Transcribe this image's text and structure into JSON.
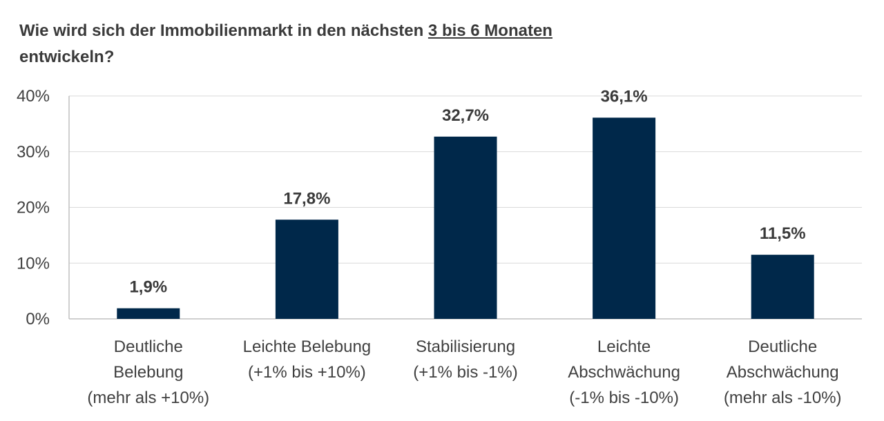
{
  "chart_data": {
    "type": "bar",
    "title_main": "Wie wird sich der Immobilienmarkt in den nächsten",
    "title_underlined": "3 bis 6 Monaten",
    "title_end": "entwickeln?",
    "categories": [
      [
        "Deutliche",
        "Belebung",
        "(mehr als +10%)"
      ],
      [
        "Leichte Belebung",
        "(+1% bis +10%)"
      ],
      [
        "Stabilisierung",
        "(+1% bis -1%)"
      ],
      [
        "Leichte",
        "Abschwächung",
        "(-1% bis -10%)"
      ],
      [
        "Deutliche",
        "Abschwächung",
        "(mehr als -10%)"
      ]
    ],
    "values": [
      1.9,
      17.8,
      32.7,
      36.1,
      11.5
    ],
    "value_labels": [
      "1,9%",
      "17,8%",
      "32,7%",
      "36,1%",
      "11,5%"
    ],
    "ylim": [
      0,
      40
    ],
    "yticks": [
      0,
      10,
      20,
      30,
      40
    ],
    "ytick_labels": [
      "0%",
      "10%",
      "20%",
      "30%",
      "40%"
    ],
    "grid": true,
    "bar_color": "#00284a",
    "grid_color": "#d9d9d9"
  }
}
